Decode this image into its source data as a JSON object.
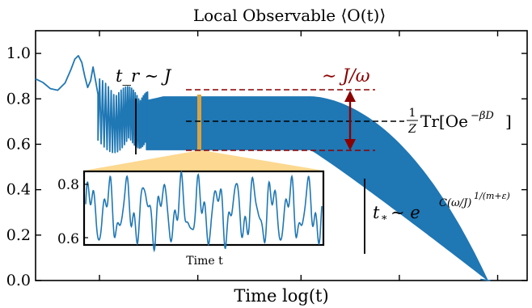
{
  "chart_data": {
    "type": "line",
    "title": "Local Observable ⟨O(t)⟩",
    "xlabel": "Time log(t)",
    "ylabel": "",
    "ylim": [
      0.0,
      1.1
    ],
    "yticks": [
      "0.0",
      "0.2",
      "0.4",
      "0.6",
      "0.8",
      "1.0"
    ],
    "xticks_labeled": false,
    "grid": false,
    "series": [
      {
        "description_points": [
          [
            0.0,
            0.88
          ],
          [
            0.04,
            0.84
          ],
          [
            0.08,
            0.93
          ],
          [
            0.1,
            0.99
          ],
          [
            0.13,
            0.85
          ],
          [
            0.16,
            0.8
          ],
          [
            0.2,
            0.78
          ],
          [
            0.25,
            0.72
          ],
          [
            0.3,
            0.7
          ],
          [
            0.4,
            0.7
          ],
          [
            0.5,
            0.7
          ],
          [
            0.6,
            0.7
          ],
          [
            0.65,
            0.68
          ],
          [
            0.7,
            0.62
          ],
          [
            0.75,
            0.52
          ],
          [
            0.8,
            0.36
          ],
          [
            0.85,
            0.17
          ],
          [
            0.9,
            0.02
          ],
          [
            0.92,
            0.0
          ]
        ],
        "band_plateau": [
          0.57,
          0.81
        ],
        "color": "#1f77b4"
      }
    ],
    "annotations": {
      "t_r": "t_r ∼ J",
      "envelope": "∼ J/ω",
      "steady_value_prefix": "Tr[Oe",
      "steady_value_exp": "−βD",
      "steady_value_suffix": "]",
      "steady_frac_num": "1",
      "steady_frac_den": "Z",
      "t_star_lhs": "t",
      "t_star_sub": "*",
      "t_star_rel": "∼ e",
      "t_star_exp": "C(ω/J)",
      "t_star_exp2": "1/(m+ε)",
      "band_upper": 0.835,
      "band_lower": 0.565,
      "band_center": 0.7
    },
    "inset": {
      "xlabel": "Time t",
      "yticks": [
        "0.6",
        "0.8"
      ],
      "ylim": [
        0.57,
        0.83
      ]
    }
  },
  "colors": {
    "line": "#1f77b4",
    "dark_red": "#8b0000",
    "highlight": "#d9a441",
    "fan": "#fcd17d"
  }
}
